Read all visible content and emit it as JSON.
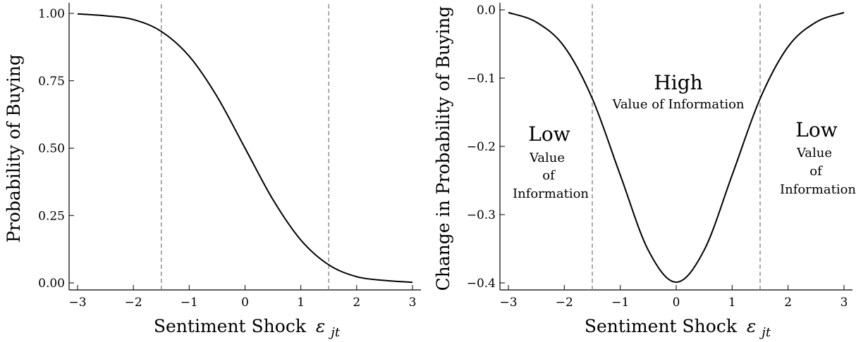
{
  "colors": {
    "curve": "#000000",
    "vline": "#808080",
    "low": "#cc0000",
    "high": "#00a651"
  },
  "chart_data": [
    {
      "type": "line",
      "title": "",
      "xlabel": "Sentiment Shock",
      "xlabel_symbol": "ε",
      "xlabel_subscript": "jt",
      "ylabel": "Probability of Buying",
      "xlim": [
        -3,
        3
      ],
      "ylim": [
        0,
        1
      ],
      "x_ticks": [
        -3,
        -2,
        -1,
        0,
        1,
        2,
        3
      ],
      "x_tick_labels": [
        "−3",
        "−2",
        "−1",
        "0",
        "1",
        "2",
        "3"
      ],
      "y_ticks": [
        0,
        0.25,
        0.5,
        0.75,
        1.0
      ],
      "y_tick_labels": [
        "0.00",
        "0.25",
        "0.50",
        "0.75",
        "1.00"
      ],
      "grid": false,
      "vlines": [
        -1.5,
        1.5
      ],
      "series": [
        {
          "x": [
            -3,
            -2.5,
            -2,
            -1.5,
            -1,
            -0.5,
            0,
            0.5,
            1,
            1.5,
            2,
            2.5,
            3
          ],
          "y": [
            0.998,
            0.991,
            0.977,
            0.933,
            0.841,
            0.691,
            0.5,
            0.309,
            0.159,
            0.067,
            0.023,
            0.009,
            0.002
          ]
        }
      ]
    },
    {
      "type": "line",
      "title": "",
      "xlabel": "Sentiment Shock",
      "xlabel_symbol": "ε",
      "xlabel_subscript": "jt",
      "ylabel": "Change in Probability of Buying",
      "xlim": [
        -3,
        3
      ],
      "ylim": [
        -0.4,
        0
      ],
      "x_ticks": [
        -3,
        -2,
        -1,
        0,
        1,
        2,
        3
      ],
      "x_tick_labels": [
        "−3",
        "−2",
        "−1",
        "0",
        "1",
        "2",
        "3"
      ],
      "y_ticks": [
        0,
        -0.1,
        -0.2,
        -0.3,
        -0.4
      ],
      "y_tick_labels": [
        "0.0",
        "−0.1",
        "−0.2",
        "−0.3",
        "−0.4"
      ],
      "grid": false,
      "vlines": [
        -1.5,
        1.5
      ],
      "series": [
        {
          "x": [
            -3,
            -2.5,
            -2,
            -1.5,
            -1,
            -0.5,
            0,
            0.5,
            1,
            1.5,
            2,
            2.5,
            3
          ],
          "y": [
            -0.004,
            -0.018,
            -0.054,
            -0.13,
            -0.242,
            -0.352,
            -0.399,
            -0.352,
            -0.242,
            -0.13,
            -0.054,
            -0.018,
            -0.004
          ]
        }
      ],
      "annotations": [
        {
          "lines": [
            "Low"
          ],
          "sub": [
            "Value",
            "of",
            "Information"
          ],
          "region": "left",
          "color": "low"
        },
        {
          "lines": [
            "High"
          ],
          "sub": [
            "Value of Information"
          ],
          "region": "center",
          "color": "high"
        },
        {
          "lines": [
            "Low"
          ],
          "sub": [
            "Value",
            "of",
            "Information"
          ],
          "region": "right",
          "color": "low"
        }
      ]
    }
  ]
}
